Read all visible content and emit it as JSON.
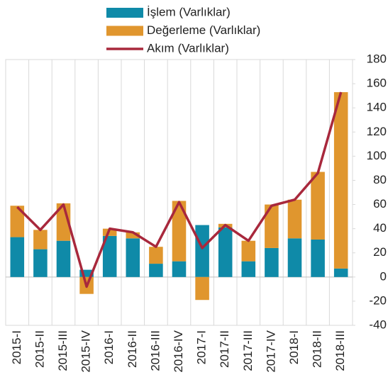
{
  "chart_data": {
    "type": "bar",
    "categories": [
      "2015-I",
      "2015-II",
      "2015-III",
      "2015-IV",
      "2016-I",
      "2016-II",
      "2016-III",
      "2016-IV",
      "2017-I",
      "2017-II",
      "2017-III",
      "2017-IV",
      "2018-I",
      "2018-II",
      "2018-III"
    ],
    "series": [
      {
        "name": "İşlem (Varlıklar)",
        "type": "bar",
        "color": "#0f8aa8",
        "values": [
          33,
          23,
          30,
          6,
          34,
          32,
          11,
          13,
          43,
          41,
          13,
          24,
          32,
          31,
          7
        ]
      },
      {
        "name": "Değerleme (Varlıklar)",
        "type": "bar",
        "color": "#e0962e",
        "values": [
          26,
          16,
          31,
          -14,
          6,
          5,
          14,
          50,
          -19,
          3,
          17,
          36,
          32,
          56,
          146
        ]
      },
      {
        "name": "Akım (Varlıklar)",
        "type": "line",
        "color": "#a8283c",
        "values": [
          58,
          39,
          60,
          -8,
          40,
          37,
          25,
          62,
          24,
          43,
          30,
          59,
          64,
          86,
          153
        ]
      }
    ],
    "ylim": [
      -40,
      180
    ],
    "yticks": [
      -40,
      -20,
      0,
      20,
      40,
      60,
      80,
      100,
      120,
      140,
      160,
      180
    ],
    "grid": true,
    "legend": "top",
    "stacked": true
  }
}
